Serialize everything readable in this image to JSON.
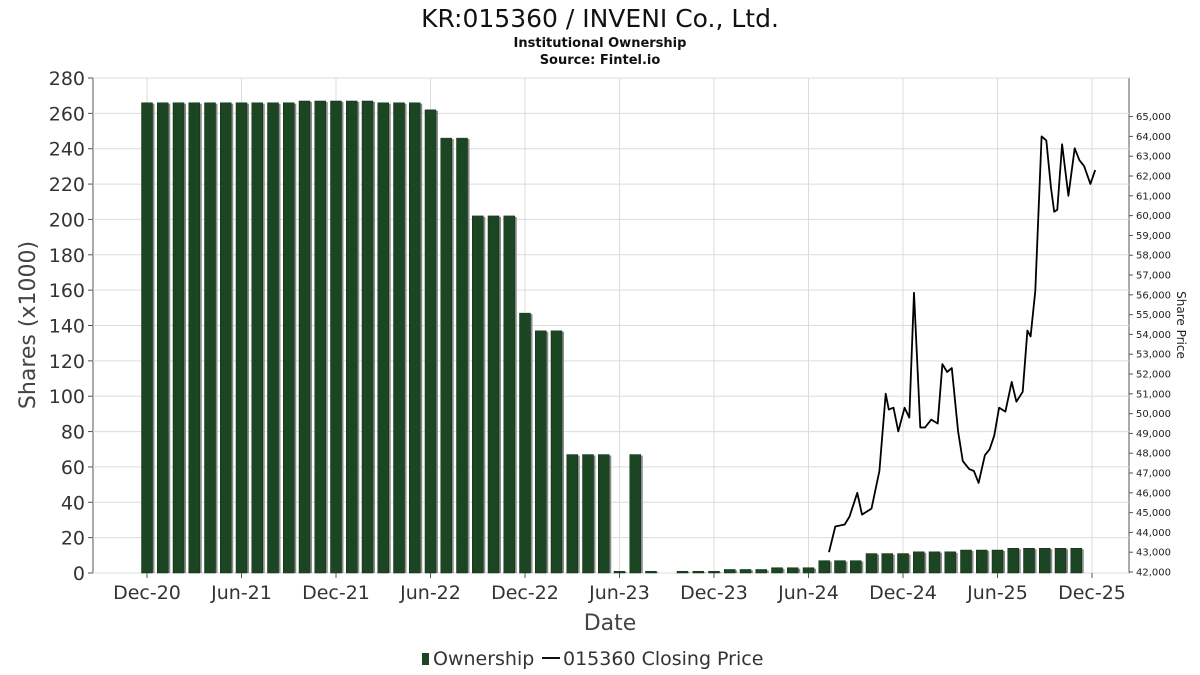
{
  "chart_data": {
    "type": "bar",
    "title": "KR:015360 / INVENI Co., Ltd.",
    "subtitle": "Institutional Ownership",
    "source": "Source: Fintel.io",
    "xlabel": "Date",
    "ylabel": "Shares (x1000)",
    "y2label": "Share Price",
    "ylim": [
      0,
      280
    ],
    "y2lim": [
      41950,
      66950
    ],
    "grid": true,
    "legend_position": "bottom-center",
    "x_ticks": [
      "Dec-20",
      "Jun-21",
      "Dec-21",
      "Jun-22",
      "Dec-22",
      "Jun-23",
      "Dec-23",
      "Jun-24",
      "Dec-24",
      "Jun-25",
      "Dec-25"
    ],
    "y_ticks": [
      0,
      20,
      40,
      60,
      80,
      100,
      120,
      140,
      160,
      180,
      200,
      220,
      240,
      260,
      280
    ],
    "y2_ticks": [
      "42,000",
      "43,000",
      "44,000",
      "45,000",
      "46,000",
      "47,000",
      "48,000",
      "49,000",
      "50,000",
      "51,000",
      "52,000",
      "53,000",
      "54,000",
      "55,000",
      "56,000",
      "57,000",
      "58,000",
      "59,000",
      "60,000",
      "61,000",
      "62,000",
      "63,000",
      "64,000",
      "65,000"
    ],
    "series": [
      {
        "name": "Ownership",
        "type": "bar",
        "color": "#1c4524",
        "x_index": [
          0,
          1,
          2,
          3,
          4,
          5,
          6,
          7,
          8,
          9,
          10,
          11,
          12,
          13,
          14,
          15,
          16,
          17,
          18,
          19,
          20,
          21,
          22,
          23,
          24,
          25,
          26,
          27,
          28,
          29,
          30,
          31,
          32,
          34,
          35,
          36,
          37,
          38,
          39,
          40,
          41,
          42,
          43,
          44,
          45,
          46,
          47,
          48,
          49,
          50,
          51,
          52,
          53,
          54,
          55,
          56,
          57,
          58,
          59
        ],
        "values": [
          266,
          266,
          266,
          266,
          266,
          266,
          266,
          266,
          266,
          266,
          267,
          267,
          267,
          267,
          267,
          266,
          266,
          266,
          262,
          246,
          246,
          202,
          202,
          202,
          147,
          137,
          137,
          67,
          67,
          67,
          1,
          67,
          1,
          1,
          1,
          1,
          2,
          2,
          2,
          3,
          3,
          3,
          7,
          7,
          7,
          11,
          11,
          11,
          12,
          12,
          12,
          13,
          13,
          13,
          14,
          14,
          14,
          14,
          14
        ]
      },
      {
        "name": "015360 Closing Price",
        "type": "line",
        "color": "#000000",
        "x": [
          43.3,
          43.7,
          44.3,
          44.6,
          45.1,
          45.4,
          46.0,
          46.5,
          46.9,
          47.1,
          47.4,
          47.7,
          48.1,
          48.4,
          48.7,
          49.1,
          49.4,
          49.8,
          50.2,
          50.5,
          50.8,
          51.1,
          51.5,
          51.8,
          52.2,
          52.5,
          52.8,
          53.2,
          53.5,
          53.8,
          54.1,
          54.5,
          54.9,
          55.2,
          55.6,
          55.9,
          56.1,
          56.4,
          56.8,
          57.1,
          57.4,
          57.6,
          57.8,
          58.1,
          58.5,
          58.9,
          59.2,
          59.5,
          59.9,
          60.2
        ],
        "values": [
          43.0,
          44.3,
          44.4,
          44.8,
          46.0,
          44.9,
          45.2,
          47.1,
          51.0,
          50.2,
          50.3,
          49.1,
          50.3,
          49.8,
          56.1,
          49.3,
          49.3,
          49.7,
          49.5,
          52.5,
          52.1,
          52.3,
          49.1,
          47.6,
          47.2,
          47.1,
          46.5,
          47.9,
          48.2,
          48.9,
          50.3,
          50.1,
          51.6,
          50.6,
          51.1,
          54.2,
          53.9,
          56.2,
          64.0,
          63.8,
          61.4,
          60.2,
          60.3,
          63.6,
          61.0,
          63.4,
          62.8,
          62.5,
          61.6,
          62.3
        ]
      }
    ]
  },
  "legend": {
    "ownership_label": "Ownership",
    "price_label": "015360 Closing Price"
  }
}
